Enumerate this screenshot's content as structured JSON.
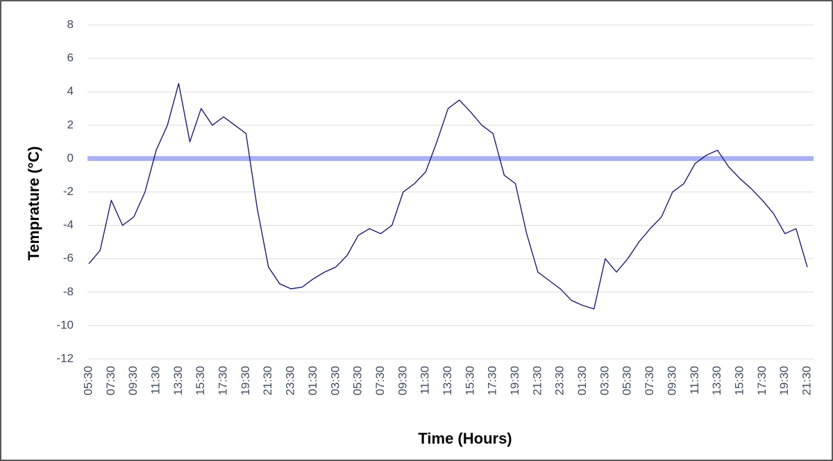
{
  "chart_data": {
    "type": "line",
    "y_label": "Temprature (°C)",
    "x_label": "Time (Hours)",
    "categories": [
      "05:30",
      null,
      "07:30",
      null,
      "09:30",
      null,
      "11:30",
      null,
      "13:30",
      null,
      "15:30",
      null,
      "17:30",
      null,
      "19:30",
      null,
      "21:30",
      null,
      "23:30",
      null,
      "01:30",
      null,
      "03:30",
      null,
      "05:30",
      null,
      "07:30",
      null,
      "09:30",
      null,
      "11:30",
      null,
      "13:30",
      null,
      "15:30",
      null,
      "17:30",
      null,
      "19:30",
      null,
      "21:30",
      null,
      "23:30",
      null,
      "01:30",
      null,
      "03:30",
      null,
      "05:30",
      null,
      "07:30",
      null,
      "09:30",
      null,
      "11:30",
      null,
      "13:30",
      null,
      "15:30",
      null,
      "17:30",
      null,
      "19:30",
      null,
      "21:30"
    ],
    "series": [
      {
        "color": "#1a1a6e",
        "values": [
          -6.3,
          -5.5,
          -2.5,
          -4.0,
          -3.5,
          -2.0,
          0.5,
          2.0,
          4.5,
          1.0,
          3.0,
          2.0,
          2.5,
          2.0,
          1.5,
          -3.0,
          -6.5,
          -7.5,
          -7.8,
          -7.7,
          -7.2,
          -6.8,
          -6.5,
          -5.8,
          -4.6,
          -4.2,
          -4.5,
          -4.0,
          -2.0,
          -1.5,
          -0.8,
          1.0,
          3.0,
          3.5,
          2.8,
          2.0,
          1.5,
          -1.0,
          -1.5,
          -4.5,
          -6.8,
          -7.3,
          -7.8,
          -8.5,
          -8.8,
          -9.0,
          -6.0,
          -6.8,
          -6.0,
          -5.0,
          -4.2,
          -3.5,
          -2.0,
          -1.5,
          -0.3,
          0.2,
          0.5,
          -0.5,
          -1.2,
          -1.8,
          -2.5,
          -3.3,
          -4.5,
          -4.2,
          -6.5
        ]
      }
    ],
    "reference_line": {
      "value": 0,
      "color": "#a9b0f4"
    },
    "ylim": [
      -12,
      8
    ],
    "yticks": [
      -12,
      -10,
      -8,
      -6,
      -4,
      -2,
      0,
      2,
      4,
      6,
      8
    ],
    "grid": true
  }
}
